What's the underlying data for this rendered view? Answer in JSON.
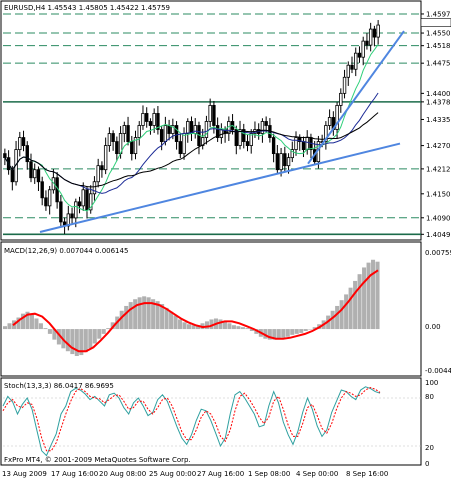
{
  "colors": {
    "background": "#ffffff",
    "candle": "#000000",
    "ma_short": "#2fd07a",
    "ma_mid": "#1b2a96",
    "ma_long": "#000000",
    "trendline": "#4f86e0",
    "hline_dark": "#1b6b4a",
    "hline_dash": "#2b8b62",
    "macd_hist": "#b0b0b0",
    "macd_signal": "#ff0000",
    "stoch_main": "#2fa0a0",
    "stoch_signal": "#ff0000"
  },
  "main_panel": {
    "title": "EURUSD,H4  1.45543 1.45805 1.45422 1.45759",
    "price_levels": [
      "1.45976",
      "1.45759",
      "1.45501",
      "1.45187",
      "1.44751",
      "1.44000",
      "1.43788",
      "1.43350",
      "1.42700",
      "1.42120",
      "1.41500",
      "1.40903",
      "1.40492"
    ],
    "marked_levels": [
      "1.45976",
      "1.45501",
      "1.45187",
      "1.44751",
      "1.43788",
      "1.42120",
      "1.40903",
      "1.40492"
    ],
    "current_price": "1.45759"
  },
  "macd_panel": {
    "title": "MACD(12,26,9) 0.007044 0.006145",
    "labels": [
      "0.00759",
      "0.00",
      "-0.00446"
    ]
  },
  "stoch_panel": {
    "title": "Stoch(13,3,3) 86.0417 86.9695",
    "labels": [
      "100",
      "80",
      "20",
      "0"
    ]
  },
  "x_axis": {
    "labels": [
      "13 Aug 2009",
      "17 Aug 16:00",
      "20 Aug 08:00",
      "25 Aug 00:00",
      "27 Aug 16:00",
      "1 Sep 08:00",
      "4 Sep 00:00",
      "8 Sep 16:00"
    ]
  },
  "footer": {
    "copyright": "FxPro MT4, © 2001-2009 MetaQuotes Software Corp."
  },
  "chart_data": {
    "type": "candlestick",
    "symbol": "EURUSD",
    "timeframe": "H4",
    "title": "EURUSD,H4  1.45543 1.45805 1.45422 1.45759",
    "ylim": [
      1.404,
      1.46
    ],
    "closes": [
      1.424,
      1.421,
      1.418,
      1.426,
      1.429,
      1.427,
      1.423,
      1.419,
      1.421,
      1.418,
      1.414,
      1.412,
      1.416,
      1.419,
      1.413,
      1.408,
      1.407,
      1.41,
      1.409,
      1.413,
      1.412,
      1.416,
      1.411,
      1.415,
      1.418,
      1.422,
      1.421,
      1.427,
      1.43,
      1.428,
      1.425,
      1.43,
      1.432,
      1.428,
      1.425,
      1.429,
      1.432,
      1.435,
      1.433,
      1.432,
      1.435,
      1.431,
      1.428,
      1.432,
      1.43,
      1.432,
      1.428,
      1.425,
      1.43,
      1.433,
      1.43,
      1.432,
      1.427,
      1.429,
      1.433,
      1.437,
      1.432,
      1.429,
      1.431,
      1.43,
      1.433,
      1.431,
      1.427,
      1.431,
      1.428,
      1.427,
      1.43,
      1.431,
      1.43,
      1.433,
      1.432,
      1.429,
      1.425,
      1.421,
      1.425,
      1.422,
      1.424,
      1.426,
      1.429,
      1.428,
      1.426,
      1.429,
      1.426,
      1.423,
      1.428,
      1.428,
      1.432,
      1.434,
      1.431,
      1.437,
      1.44,
      1.444,
      1.447,
      1.446,
      1.45,
      1.449,
      1.453,
      1.452,
      1.456,
      1.454,
      1.457
    ],
    "levels": [
      1.45976,
      1.45501,
      1.45187,
      1.44751,
      1.43788,
      1.4212,
      1.40903,
      1.40492
    ],
    "macd": {
      "name": "MACD(12,26,9)",
      "main": 0.007044,
      "signal": 0.006145,
      "ylim": [
        -0.00446,
        0.00759
      ],
      "hist": [
        0.0003,
        0.0006,
        0.0009,
        0.0012,
        0.0016,
        0.0018,
        0.0015,
        0.0011,
        0.0006,
        0.0001,
        -0.0005,
        -0.0011,
        -0.0016,
        -0.002,
        -0.0023,
        -0.0026,
        -0.0028,
        -0.0027,
        -0.0024,
        -0.002,
        -0.0015,
        -0.001,
        -0.0005,
        0.0001,
        0.0007,
        0.0013,
        0.0019,
        0.0024,
        0.0028,
        0.0031,
        0.0033,
        0.0034,
        0.0033,
        0.0031,
        0.0029,
        0.0026,
        0.0022,
        0.0018,
        0.0014,
        0.001,
        0.0007,
        0.0005,
        0.0004,
        0.0004,
        0.0006,
        0.0008,
        0.001,
        0.0011,
        0.001,
        0.0008,
        0.0006,
        0.0004,
        0.0003,
        0.0002,
        0.0001,
        -0.0002,
        -0.0005,
        -0.0008,
        -0.001,
        -0.0011,
        -0.0011,
        -0.001,
        -0.0009,
        -0.0008,
        -0.0006,
        -0.0005,
        -0.0004,
        -0.0002,
        0.0,
        0.0002,
        0.0005,
        0.0009,
        0.0014,
        0.0019,
        0.0024,
        0.003,
        0.0036,
        0.0043,
        0.005,
        0.0057,
        0.0064,
        0.0069,
        0.0072,
        0.007
      ],
      "signal_line": [
        0.0004,
        0.001,
        0.0015,
        0.0016,
        0.0013,
        0.0006,
        -0.0003,
        -0.0012,
        -0.0019,
        -0.0023,
        -0.0023,
        -0.0019,
        -0.0012,
        -0.0004,
        0.0005,
        0.0013,
        0.002,
        0.0025,
        0.0027,
        0.0027,
        0.0025,
        0.0021,
        0.0016,
        0.0011,
        0.0007,
        0.0004,
        0.0002,
        0.0003,
        0.0006,
        0.0008,
        0.0008,
        0.0006,
        0.0003,
        0.0,
        -0.0004,
        -0.0008,
        -0.001,
        -0.001,
        -0.0009,
        -0.0007,
        -0.0005,
        -0.0002,
        0.0002,
        0.0007,
        0.0013,
        0.002,
        0.0029,
        0.0039,
        0.0048,
        0.0056,
        0.0061
      ]
    },
    "stoch": {
      "name": "Stoch(13,3,3)",
      "main": 86.0417,
      "signal": 86.9695,
      "ylim": [
        0,
        100
      ],
      "main_line": [
        70,
        82,
        75,
        60,
        72,
        80,
        66,
        40,
        14,
        8,
        22,
        35,
        60,
        70,
        88,
        92,
        90,
        85,
        78,
        82,
        76,
        70,
        84,
        86,
        80,
        68,
        60,
        74,
        80,
        70,
        58,
        62,
        78,
        84,
        76,
        60,
        44,
        30,
        22,
        34,
        52,
        66,
        64,
        52,
        36,
        20,
        30,
        60,
        84,
        88,
        80,
        70,
        60,
        44,
        46,
        70,
        88,
        74,
        50,
        34,
        22,
        38,
        62,
        80,
        66,
        45,
        32,
        40,
        62,
        76,
        90,
        88,
        82,
        78,
        90,
        94,
        92,
        88,
        86
      ],
      "signal_line": [
        64,
        74,
        78,
        70,
        68,
        74,
        72,
        55,
        30,
        14,
        14,
        24,
        42,
        60,
        76,
        88,
        92,
        88,
        82,
        80,
        79,
        74,
        78,
        83,
        84,
        76,
        66,
        68,
        76,
        76,
        66,
        60,
        68,
        78,
        80,
        70,
        54,
        38,
        28,
        28,
        40,
        56,
        64,
        60,
        48,
        32,
        26,
        40,
        64,
        82,
        86,
        78,
        68,
        56,
        48,
        56,
        76,
        82,
        66,
        46,
        32,
        32,
        48,
        68,
        72,
        58,
        42,
        36,
        48,
        66,
        80,
        88,
        86,
        82,
        84,
        90,
        93,
        91,
        87
      ]
    }
  }
}
